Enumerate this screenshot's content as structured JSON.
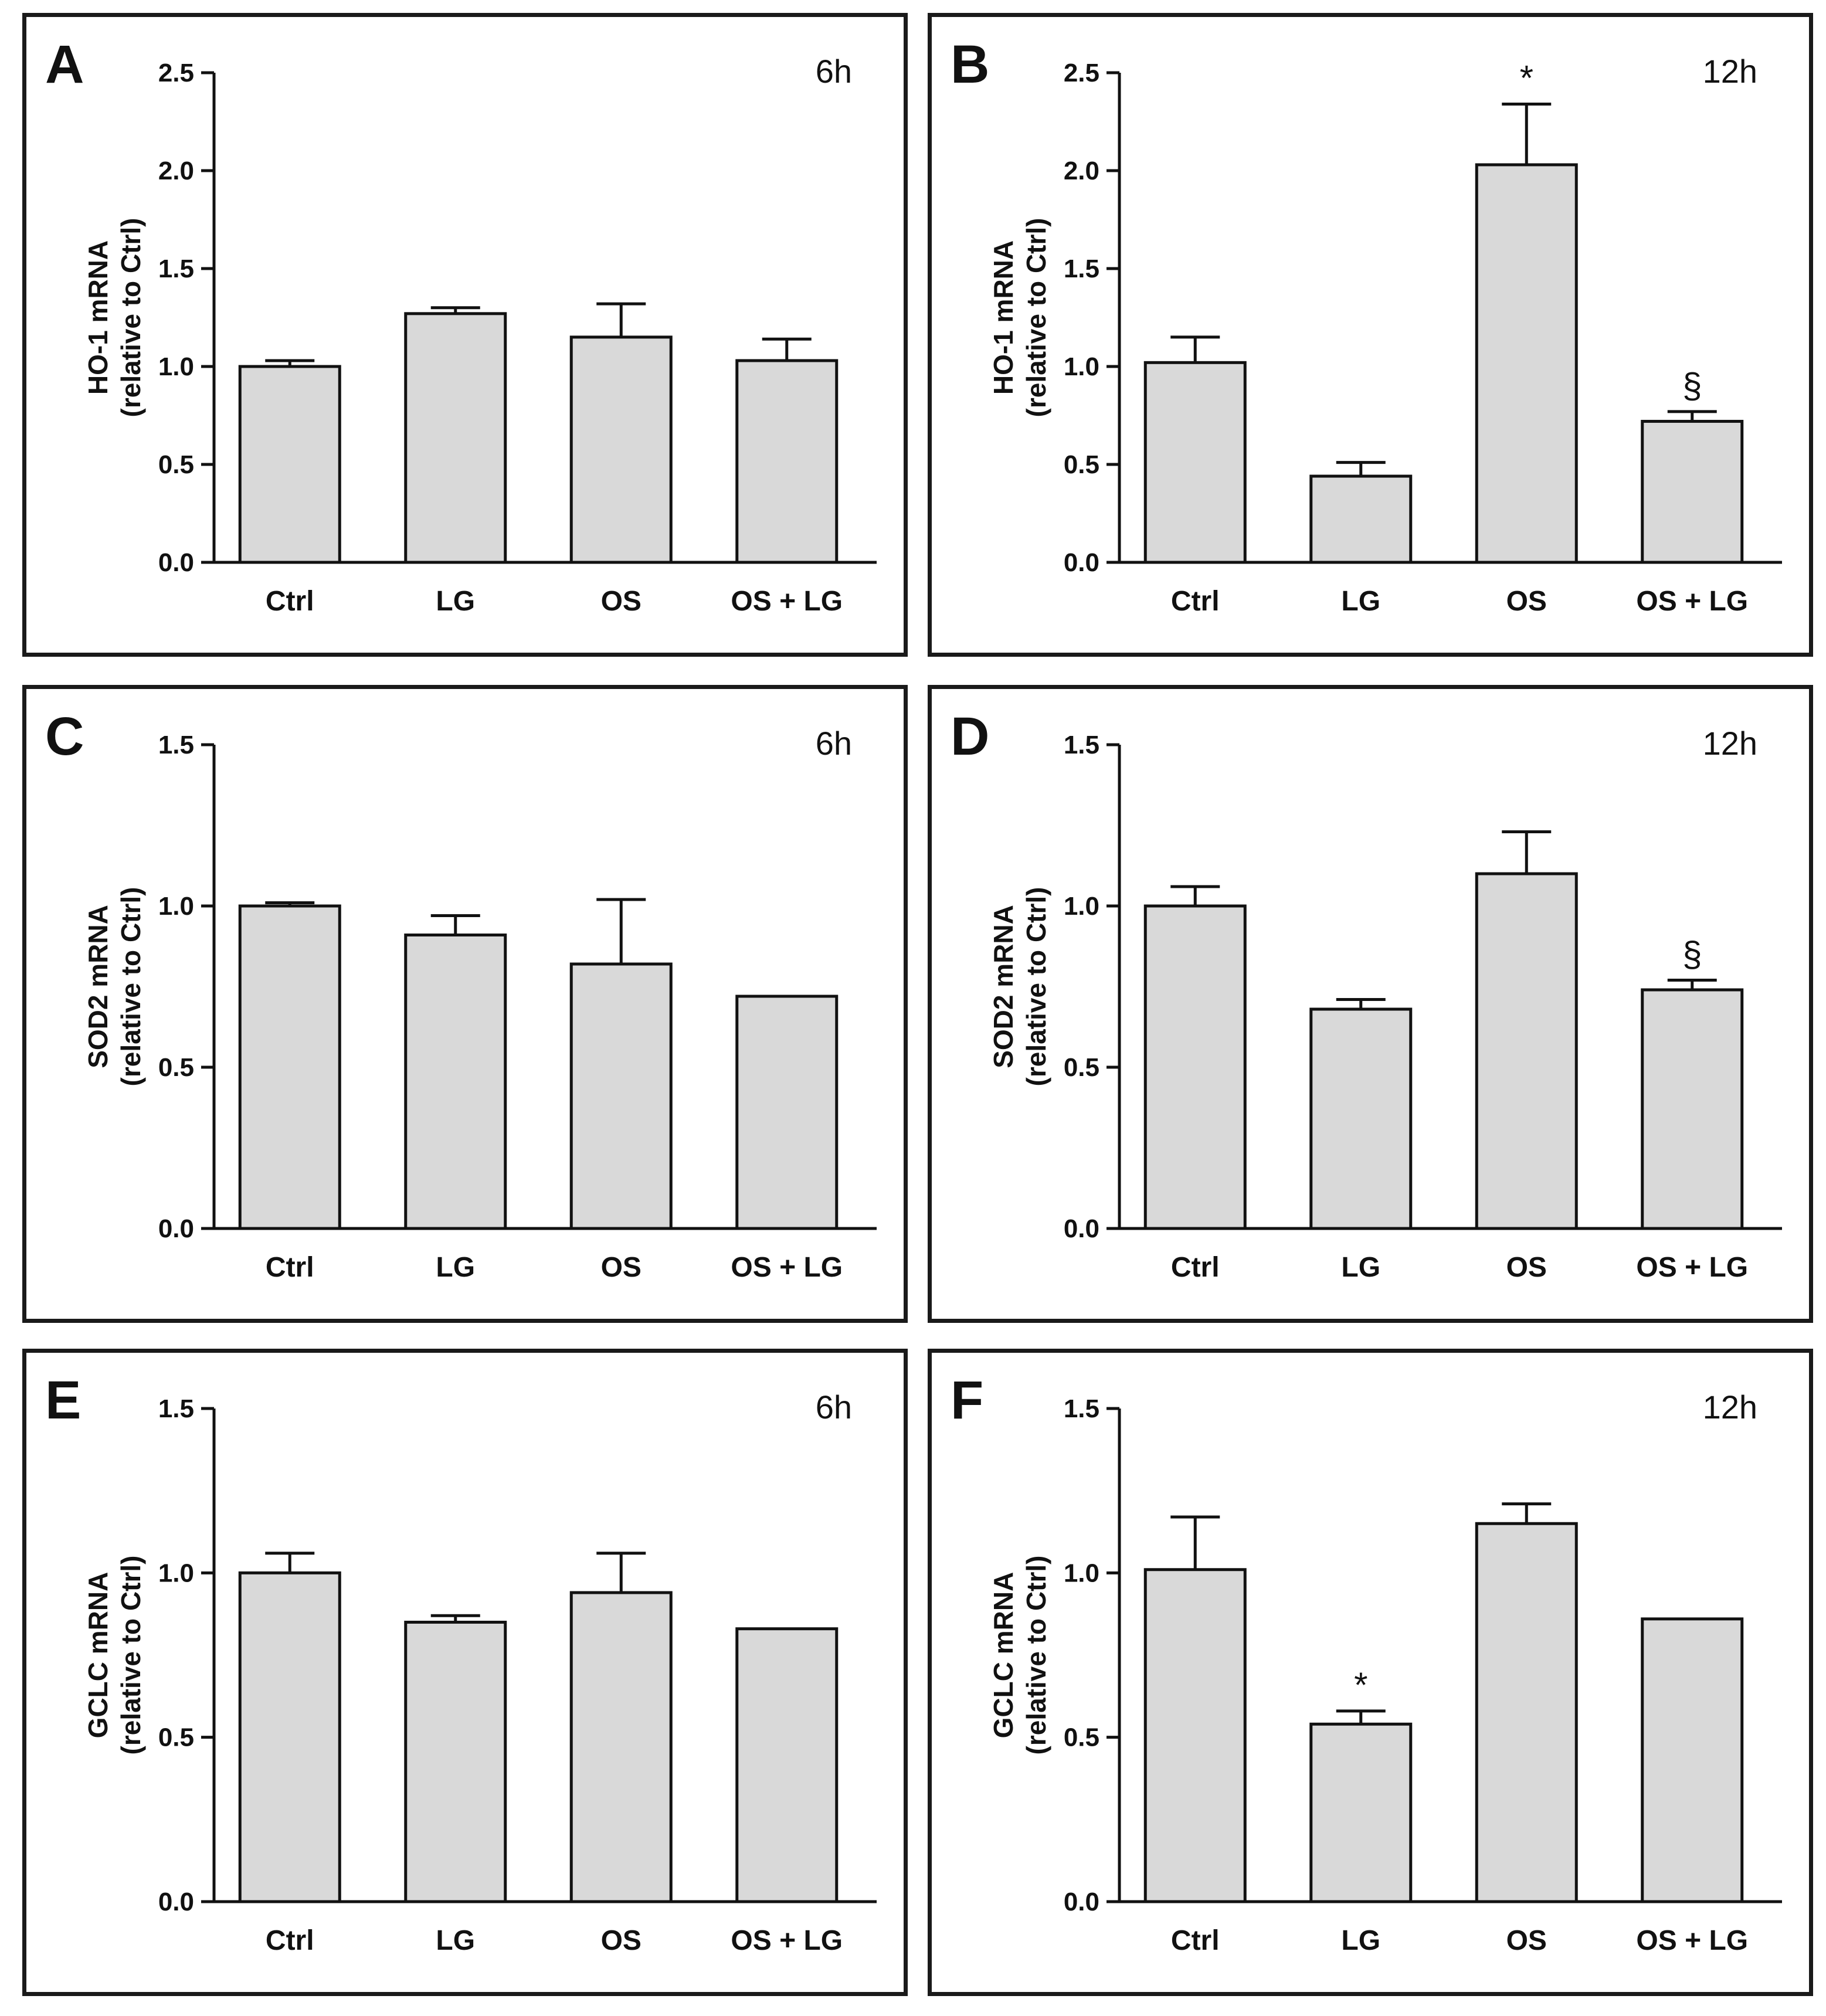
{
  "chart_data": [
    {
      "panel": "A",
      "time": "6h",
      "type": "bar",
      "ylabel": [
        "HO-1 mRNA",
        "(relative to Ctrl)"
      ],
      "categories": [
        "Ctrl",
        "LG",
        "OS",
        "OS + LG"
      ],
      "values": [
        1.0,
        1.27,
        1.15,
        1.03
      ],
      "errors": [
        0.03,
        0.03,
        0.17,
        0.11
      ],
      "marks": [
        "",
        "",
        "",
        ""
      ],
      "ylim": [
        0,
        2.5
      ],
      "yticks": [
        0,
        0.5,
        1.0,
        1.5,
        2.0,
        2.5
      ],
      "ytick_labels": [
        "0.0",
        "0.5",
        "1.0",
        "1.5",
        "2.0",
        "2.5"
      ]
    },
    {
      "panel": "B",
      "time": "12h",
      "type": "bar",
      "ylabel": [
        "HO-1 mRNA",
        "(relative to Ctrl)"
      ],
      "categories": [
        "Ctrl",
        "LG",
        "OS",
        "OS + LG"
      ],
      "values": [
        1.02,
        0.44,
        2.03,
        0.72
      ],
      "errors": [
        0.13,
        0.07,
        0.31,
        0.05
      ],
      "marks": [
        "",
        "",
        "*",
        "§"
      ],
      "ylim": [
        0,
        2.5
      ],
      "yticks": [
        0,
        0.5,
        1.0,
        1.5,
        2.0,
        2.5
      ],
      "ytick_labels": [
        "0.0",
        "0.5",
        "1.0",
        "1.5",
        "2.0",
        "2.5"
      ]
    },
    {
      "panel": "C",
      "time": "6h",
      "type": "bar",
      "ylabel": [
        "SOD2 mRNA",
        "(relative to Ctrl)"
      ],
      "categories": [
        "Ctrl",
        "LG",
        "OS",
        "OS + LG"
      ],
      "values": [
        1.0,
        0.91,
        0.82,
        0.72
      ],
      "errors": [
        0.01,
        0.06,
        0.2,
        0.0
      ],
      "marks": [
        "",
        "",
        "",
        ""
      ],
      "ylim": [
        0,
        1.5
      ],
      "yticks": [
        0,
        0.5,
        1.0,
        1.5
      ],
      "ytick_labels": [
        "0.0",
        "0.5",
        "1.0",
        "1.5"
      ]
    },
    {
      "panel": "D",
      "time": "12h",
      "type": "bar",
      "ylabel": [
        "SOD2 mRNA",
        "(relative to Ctrl)"
      ],
      "categories": [
        "Ctrl",
        "LG",
        "OS",
        "OS + LG"
      ],
      "values": [
        1.0,
        0.68,
        1.1,
        0.74
      ],
      "errors": [
        0.06,
        0.03,
        0.13,
        0.03
      ],
      "marks": [
        "",
        "",
        "",
        "§"
      ],
      "ylim": [
        0,
        1.5
      ],
      "yticks": [
        0,
        0.5,
        1.0,
        1.5
      ],
      "ytick_labels": [
        "0.0",
        "0.5",
        "1.0",
        "1.5"
      ]
    },
    {
      "panel": "E",
      "time": "6h",
      "type": "bar",
      "ylabel": [
        "GCLC mRNA",
        "(relative to Ctrl)"
      ],
      "categories": [
        "Ctrl",
        "LG",
        "OS",
        "OS + LG"
      ],
      "values": [
        1.0,
        0.85,
        0.94,
        0.83
      ],
      "errors": [
        0.06,
        0.02,
        0.12,
        0.0
      ],
      "marks": [
        "",
        "",
        "",
        ""
      ],
      "ylim": [
        0,
        1.5
      ],
      "yticks": [
        0,
        0.5,
        1.0,
        1.5
      ],
      "ytick_labels": [
        "0.0",
        "0.5",
        "1.0",
        "1.5"
      ]
    },
    {
      "panel": "F",
      "time": "12h",
      "type": "bar",
      "ylabel": [
        "GCLC mRNA",
        "(relative to Ctrl)"
      ],
      "categories": [
        "Ctrl",
        "LG",
        "OS",
        "OS + LG"
      ],
      "values": [
        1.01,
        0.54,
        1.15,
        0.86
      ],
      "errors": [
        0.16,
        0.04,
        0.06,
        0.0
      ],
      "marks": [
        "",
        "*",
        "",
        ""
      ],
      "ylim": [
        0,
        1.5
      ],
      "yticks": [
        0,
        0.5,
        1.0,
        1.5
      ],
      "ytick_labels": [
        "0.0",
        "0.5",
        "1.0",
        "1.5"
      ]
    }
  ],
  "style": {
    "bar_fill": "#d9d9d9",
    "stroke": "#111111"
  }
}
